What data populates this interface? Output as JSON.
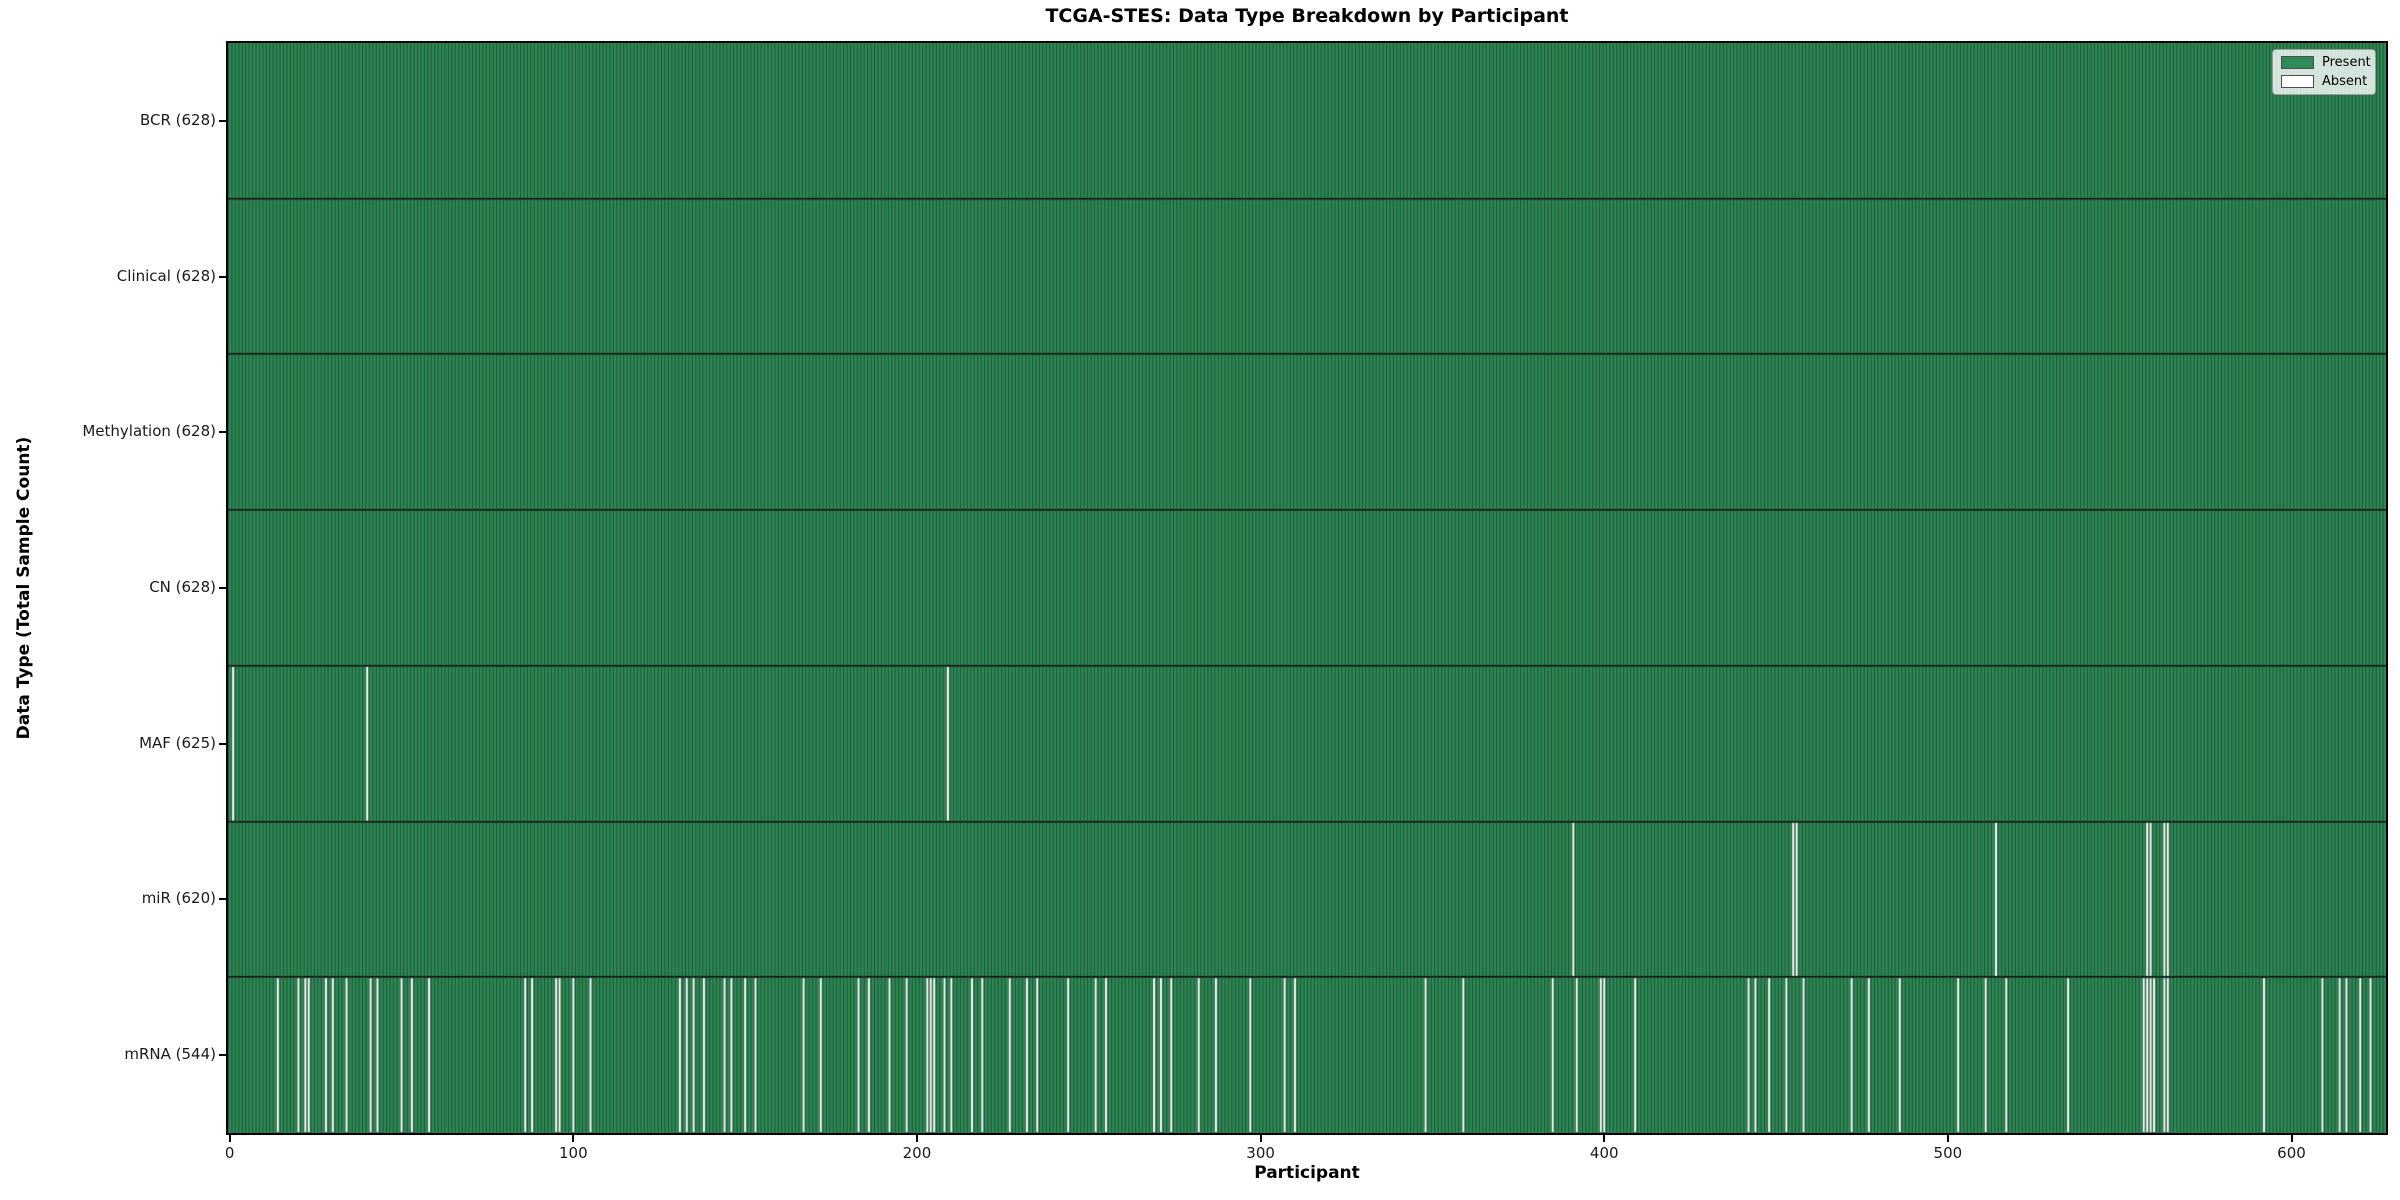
{
  "figure": {
    "title": "TCGA-STES: Data Type Breakdown by Participant",
    "xlabel": "Participant",
    "ylabel": "Data Type (Total Sample Count)"
  },
  "legend": {
    "items": [
      {
        "label": "Present",
        "color": "#2e8b57"
      },
      {
        "label": "Absent",
        "color": "#ffffff"
      }
    ]
  },
  "chart_data": {
    "type": "heatmap",
    "title": "TCGA-STES: Data Type Breakdown by Participant",
    "xlabel": "Participant",
    "ylabel": "Data Type (Total Sample Count)",
    "legend": [
      "Present",
      "Absent"
    ],
    "legend_position": "upper right",
    "grid": false,
    "n_participants": 628,
    "xlim": [
      -0.5,
      627.5
    ],
    "x_ticks": [
      0,
      100,
      200,
      300,
      400,
      500,
      600
    ],
    "colors": {
      "present": "#2e8b57",
      "absent": "#ffffff",
      "bar_edge": "#1d4f32",
      "row_border": "#0d0d0d",
      "absent_edge": "#2a5a3e"
    },
    "rows": [
      {
        "name": "BCR",
        "label": "BCR (628)",
        "count": 628,
        "absent": []
      },
      {
        "name": "Clinical",
        "label": "Clinical (628)",
        "count": 628,
        "absent": []
      },
      {
        "name": "Methylation",
        "label": "Methylation (628)",
        "count": 628,
        "absent": []
      },
      {
        "name": "CN",
        "label": "CN (628)",
        "count": 628,
        "absent": []
      },
      {
        "name": "MAF",
        "label": "MAF (625)",
        "count": 625,
        "absent": [
          1,
          40,
          209
        ]
      },
      {
        "name": "miR",
        "label": "miR (620)",
        "count": 620,
        "absent": [
          391,
          455,
          456,
          514,
          558,
          559,
          563,
          564
        ]
      },
      {
        "name": "mRNA",
        "label": "mRNA (544)",
        "count": 544,
        "absent": [
          14,
          20,
          22,
          23,
          28,
          30,
          34,
          41,
          43,
          50,
          53,
          58,
          86,
          88,
          95,
          96,
          100,
          105,
          131,
          133,
          135,
          138,
          144,
          146,
          150,
          153,
          167,
          172,
          183,
          186,
          192,
          197,
          203,
          204,
          205,
          208,
          210,
          216,
          219,
          227,
          232,
          235,
          244,
          252,
          255,
          269,
          271,
          274,
          282,
          287,
          297,
          307,
          310,
          348,
          359,
          385,
          392,
          399,
          400,
          409,
          442,
          444,
          448,
          453,
          458,
          472,
          477,
          486,
          503,
          511,
          517,
          535,
          557,
          558,
          559,
          560,
          563,
          564,
          592,
          609,
          614,
          616,
          620,
          623
        ]
      }
    ]
  }
}
